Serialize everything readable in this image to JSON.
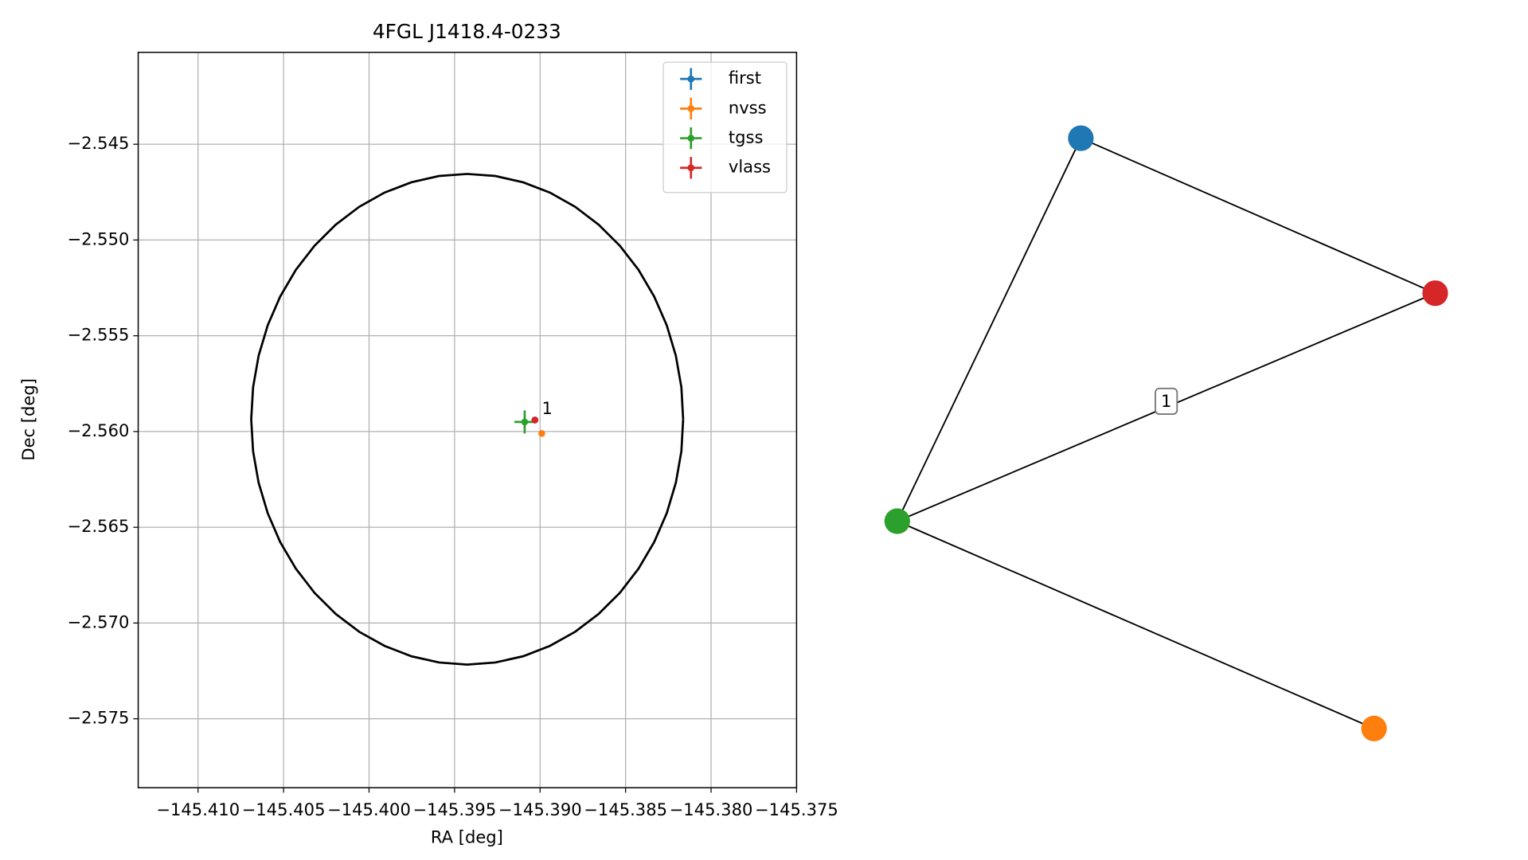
{
  "chart_data": {
    "type": "scatter",
    "title": "4FGL J1418.4-0233",
    "x_label": "RA [deg]",
    "y_label": "Dec [deg]",
    "xlim": [
      -145.4135,
      -145.375
    ],
    "ylim": [
      -2.5786,
      -2.5402
    ],
    "xticks": [
      {
        "value": -145.41,
        "label": "−145.410"
      },
      {
        "value": -145.405,
        "label": "−145.405"
      },
      {
        "value": -145.4,
        "label": "−145.400"
      },
      {
        "value": -145.395,
        "label": "−145.395"
      },
      {
        "value": -145.39,
        "label": "−145.390"
      },
      {
        "value": -145.385,
        "label": "−145.385"
      },
      {
        "value": -145.38,
        "label": "−145.380"
      },
      {
        "value": -145.375,
        "label": "−145.375"
      }
    ],
    "yticks": [
      {
        "value": -2.545,
        "label": "−2.545"
      },
      {
        "value": -2.55,
        "label": "−2.550"
      },
      {
        "value": -2.555,
        "label": "−2.555"
      },
      {
        "value": -2.56,
        "label": "−2.560"
      },
      {
        "value": -2.565,
        "label": "−2.565"
      },
      {
        "value": -2.57,
        "label": "−2.570"
      },
      {
        "value": -2.575,
        "label": "−2.575"
      }
    ],
    "grid": true,
    "legend": "upper right",
    "ellipse": {
      "center": [
        -145.39426,
        -2.55936
      ],
      "width": 0.02526,
      "height": 0.02562,
      "color": "#000000"
    },
    "series": [
      {
        "name": "first",
        "color": "#1f77b4",
        "x": [
          -145.3903
        ],
        "y": [
          -2.5594
        ],
        "xerr": [
          0.0001
        ],
        "yerr": [
          0.0001
        ]
      },
      {
        "name": "nvss",
        "color": "#ff7f0e",
        "x": [
          -145.3899
        ],
        "y": [
          -2.5601
        ],
        "xerr": [
          0.0001
        ],
        "yerr": [
          0.0001
        ]
      },
      {
        "name": "tgss",
        "color": "#2ca02c",
        "x": [
          -145.3909
        ],
        "y": [
          -2.5595
        ],
        "xerr": [
          0.0006
        ],
        "yerr": [
          0.0006
        ]
      },
      {
        "name": "vlass",
        "color": "#d62728",
        "x": [
          -145.3903
        ],
        "y": [
          -2.5594
        ],
        "xerr": [
          0.0001
        ],
        "yerr": [
          0.0001
        ]
      }
    ],
    "annotations": [
      {
        "text": "1",
        "x": -145.3903,
        "y": -2.5594
      }
    ],
    "graph": {
      "nodes": [
        {
          "name": "first",
          "color": "#1f77b4"
        },
        {
          "name": "vlass",
          "color": "#d62728"
        },
        {
          "name": "tgss",
          "color": "#2ca02c"
        },
        {
          "name": "nvss",
          "color": "#ff7f0e"
        }
      ],
      "edges": [
        {
          "source": 0,
          "target": 1
        },
        {
          "source": 0,
          "target": 2
        },
        {
          "source": 2,
          "target": 1,
          "label": "1"
        },
        {
          "source": 2,
          "target": 3
        }
      ]
    }
  }
}
